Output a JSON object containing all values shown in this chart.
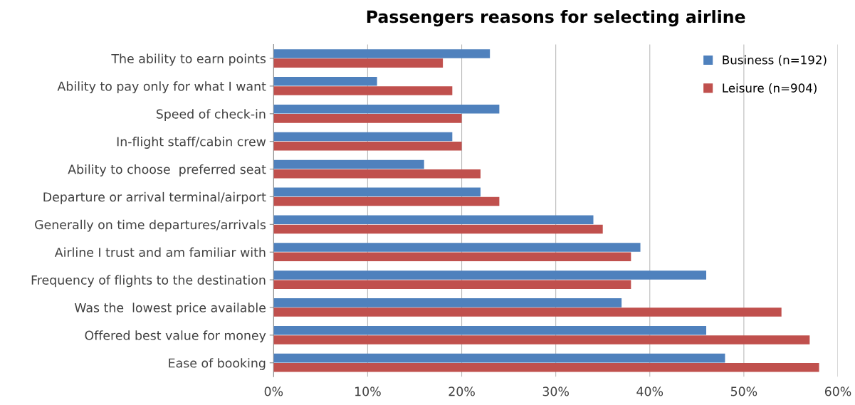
{
  "chart_data": {
    "type": "bar",
    "orientation": "horizontal",
    "title": "Passengers reasons for selecting airline",
    "categories": [
      "The ability to earn points",
      "Ability to pay only for what I want",
      "Speed of check-in",
      "In-flight staff/cabin crew",
      "Ability to choose  preferred seat",
      "Departure or arrival terminal/airport",
      "Generally on time departures/arrivals",
      "Airline I trust and am familiar with",
      "Frequency of flights to the destination",
      "Was the  lowest price available",
      "Offered best value for money",
      "Ease of booking"
    ],
    "series": [
      {
        "name": "Business (n=192)",
        "color": "#4f81bd",
        "values": [
          23,
          11,
          24,
          19,
          16,
          22,
          34,
          39,
          46,
          37,
          46,
          48
        ]
      },
      {
        "name": "Leisure (n=904)",
        "color": "#c0504d",
        "values": [
          18,
          19,
          20,
          20,
          22,
          24,
          35,
          38,
          38,
          54,
          57,
          58
        ]
      }
    ],
    "xlim": [
      0,
      60
    ],
    "xticks": [
      {
        "value": 0,
        "label": "0%"
      },
      {
        "value": 10,
        "label": "10%"
      },
      {
        "value": 20,
        "label": "20%"
      },
      {
        "value": 30,
        "label": "30%"
      },
      {
        "value": 40,
        "label": "40%"
      },
      {
        "value": 50,
        "label": "50%"
      },
      {
        "value": 60,
        "label": "60%"
      }
    ],
    "grid": "x",
    "legend": "top right"
  }
}
